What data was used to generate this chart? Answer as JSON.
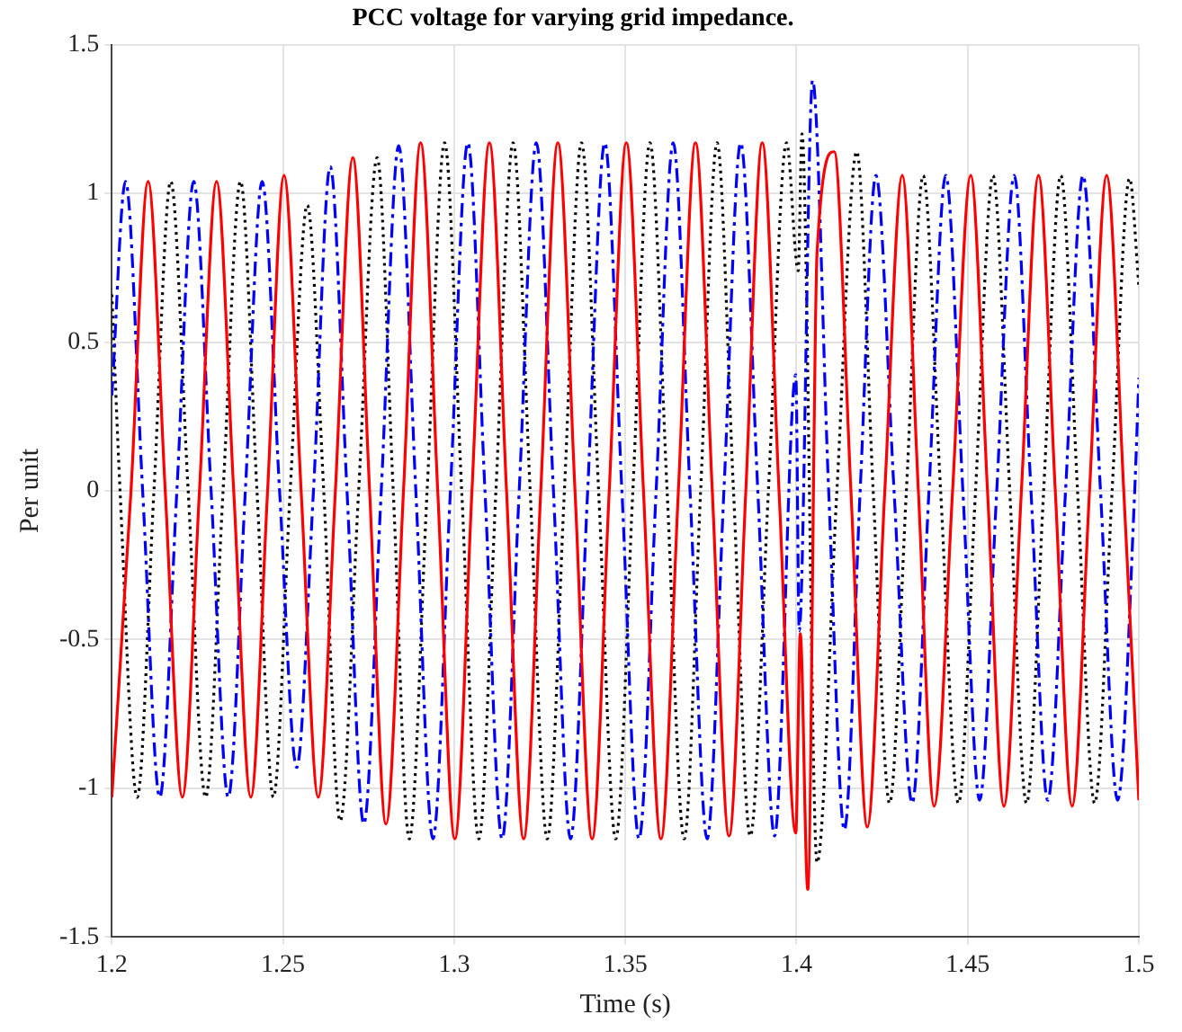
{
  "chart_data": {
    "type": "line",
    "title": "PCC voltage for varying grid impedance.",
    "xlabel": "Time (s)",
    "ylabel": "Per unit",
    "xlim": [
      1.2,
      1.5
    ],
    "xticks": [
      1.2,
      1.25,
      1.3,
      1.35,
      1.4,
      1.45,
      1.5
    ],
    "ylim": [
      -1.5,
      1.5
    ],
    "yticks": [
      -1.5,
      -1,
      -0.5,
      0,
      0.5,
      1,
      1.5
    ],
    "grid": true,
    "marker": "none",
    "series": [
      {
        "color": "#ff0000",
        "line_style": "solid",
        "x": [
          1.2,
          1.2056,
          1.2106,
          1.2156,
          1.2206,
          1.2256,
          1.2306,
          1.2356,
          1.2406,
          1.2455,
          1.2503,
          1.2553,
          1.2603,
          1.2653,
          1.2704,
          1.2753,
          1.2801,
          1.2852,
          1.2902,
          1.2952,
          1.3002,
          1.3052,
          1.3103,
          1.3153,
          1.3203,
          1.3253,
          1.3303,
          1.3353,
          1.3403,
          1.3453,
          1.3503,
          1.3553,
          1.3604,
          1.3655,
          1.3705,
          1.3754,
          1.3803,
          1.3852,
          1.39,
          1.3949,
          1.3998,
          1.4011,
          1.4033,
          1.406,
          1.411,
          1.4159,
          1.4207,
          1.4258,
          1.4309,
          1.4356,
          1.4402,
          1.4456,
          1.4509,
          1.4558,
          1.4606,
          1.4657,
          1.4707,
          1.4756,
          1.4805,
          1.4856,
          1.4906,
          1.4956,
          1.5
        ],
        "values": [
          -1.03,
          0,
          1.04,
          0,
          -1.03,
          0,
          1.04,
          0,
          -1.03,
          0,
          1.06,
          0,
          -1.03,
          0,
          1.12,
          0,
          -1.12,
          0,
          1.17,
          0,
          -1.17,
          0,
          1.17,
          0,
          -1.17,
          0,
          1.17,
          0,
          -1.17,
          0,
          1.17,
          0,
          -1.17,
          0,
          1.17,
          0,
          -1.16,
          0,
          1.17,
          0,
          -1.15,
          -0.48,
          -1.34,
          0.8,
          1.14,
          0,
          -1.13,
          0,
          1.06,
          0,
          -1.06,
          0,
          1.06,
          0,
          -1.06,
          0,
          1.06,
          0,
          -1.06,
          0,
          1.06,
          0,
          -1.04
        ]
      },
      {
        "color": "#0000ff",
        "line_style": "dashed",
        "x": [
          1.2,
          1.204,
          1.209,
          1.214,
          1.219,
          1.2239,
          1.229,
          1.234,
          1.239,
          1.2439,
          1.249,
          1.254,
          1.2589,
          1.2638,
          1.2687,
          1.2736,
          1.2787,
          1.2838,
          1.2888,
          1.2938,
          1.2989,
          1.304,
          1.309,
          1.314,
          1.319,
          1.324,
          1.329,
          1.334,
          1.339,
          1.344,
          1.349,
          1.354,
          1.359,
          1.364,
          1.3689,
          1.3739,
          1.3788,
          1.3837,
          1.3887,
          1.3936,
          1.3998,
          1.4008,
          1.4047,
          1.4094,
          1.414,
          1.4186,
          1.4232,
          1.4285,
          1.4338,
          1.4387,
          1.4436,
          1.4486,
          1.4535,
          1.4585,
          1.4636,
          1.4685,
          1.4734,
          1.4786,
          1.4837,
          1.4888,
          1.4938,
          1.4988,
          1.5
        ],
        "values": [
          0.32,
          1.04,
          0,
          -1.03,
          0,
          1.04,
          0,
          -1.03,
          0,
          1.04,
          0,
          -0.93,
          0,
          1.09,
          0,
          -1.12,
          0,
          1.16,
          0,
          -1.17,
          0,
          1.17,
          0,
          -1.17,
          0,
          1.17,
          0,
          -1.17,
          0,
          1.17,
          0,
          -1.17,
          0,
          1.17,
          0,
          -1.17,
          0,
          1.17,
          0,
          -1.16,
          0.39,
          -0.47,
          1.38,
          0,
          -1.14,
          0,
          1.06,
          0,
          -1.05,
          0,
          1.06,
          0,
          -1.04,
          0,
          1.06,
          0,
          -1.04,
          0,
          1.06,
          0,
          -1.04,
          0,
          0.38
        ]
      },
      {
        "color": "#000000",
        "line_style": "dotted",
        "x": [
          1.2,
          1.2024,
          1.2074,
          1.2123,
          1.2172,
          1.2223,
          1.2274,
          1.2325,
          1.2376,
          1.2424,
          1.2472,
          1.2521,
          1.2571,
          1.2619,
          1.2667,
          1.2721,
          1.2775,
          1.2822,
          1.2869,
          1.2921,
          1.2972,
          1.3022,
          1.3072,
          1.3122,
          1.3172,
          1.3222,
          1.3272,
          1.3322,
          1.3372,
          1.3422,
          1.3472,
          1.3522,
          1.3572,
          1.3622,
          1.3672,
          1.372,
          1.3768,
          1.3816,
          1.3865,
          1.3918,
          1.3971,
          1.4005,
          1.4016,
          1.406,
          1.4118,
          1.4176,
          1.4224,
          1.4272,
          1.4321,
          1.437,
          1.4421,
          1.4473,
          1.4523,
          1.4574,
          1.4623,
          1.4672,
          1.4722,
          1.4772,
          1.4821,
          1.4871,
          1.4922,
          1.4973,
          1.5
        ],
        "values": [
          0.66,
          0,
          -1.03,
          0,
          1.04,
          0,
          -1.03,
          0,
          1.04,
          0,
          -1.03,
          0,
          0.96,
          0,
          -1.11,
          0,
          1.12,
          0,
          -1.17,
          0,
          1.17,
          0,
          -1.17,
          0,
          1.17,
          0,
          -1.17,
          0,
          1.17,
          0,
          -1.17,
          0,
          1.17,
          0,
          -1.17,
          0,
          1.17,
          0,
          -1.16,
          0,
          1.17,
          0.74,
          1.2,
          -1.25,
          0,
          1.14,
          0,
          -1.05,
          0,
          1.06,
          0,
          -1.05,
          0,
          1.06,
          0,
          -1.05,
          0,
          1.06,
          0,
          -1.05,
          0,
          1.05,
          0.69
        ]
      }
    ]
  }
}
